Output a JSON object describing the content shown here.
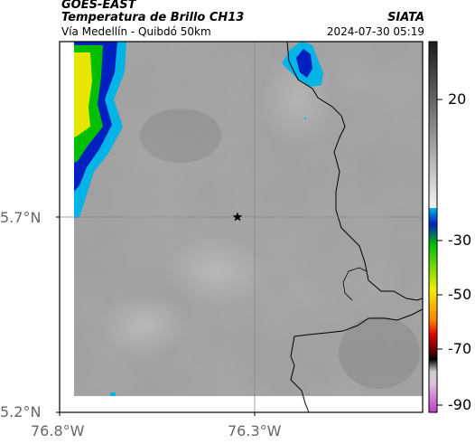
{
  "header": {
    "satellite": "GOES-EAST",
    "product": "Temperatura de Brillo CH13",
    "route": "Vía Medellín - Quibdó 50km",
    "source": "SIATA",
    "timestamp": "2024-07-30 05:19"
  },
  "map": {
    "lat_ticks": [
      "5.7°N",
      "5.2°N"
    ],
    "lon_ticks": [
      "76.8°W",
      "76.3°W"
    ],
    "marker": "star-marker"
  },
  "colorbar": {
    "labels": [
      "20",
      "-30",
      "-50",
      "-70",
      "-90"
    ],
    "colors": {
      "warm_gray_top": "#1a1a1a",
      "warm_gray_bottom": "#f2f2f2",
      "cyan": "#00b4e6",
      "blue": "#0020c0",
      "green": "#00c000",
      "yellow": "#f0f000",
      "orange": "#ff8000",
      "red": "#e00000",
      "dark_red": "#600000",
      "black": "#000000",
      "gray_cold": "#cccccc",
      "magenta": "#c040c0"
    }
  }
}
